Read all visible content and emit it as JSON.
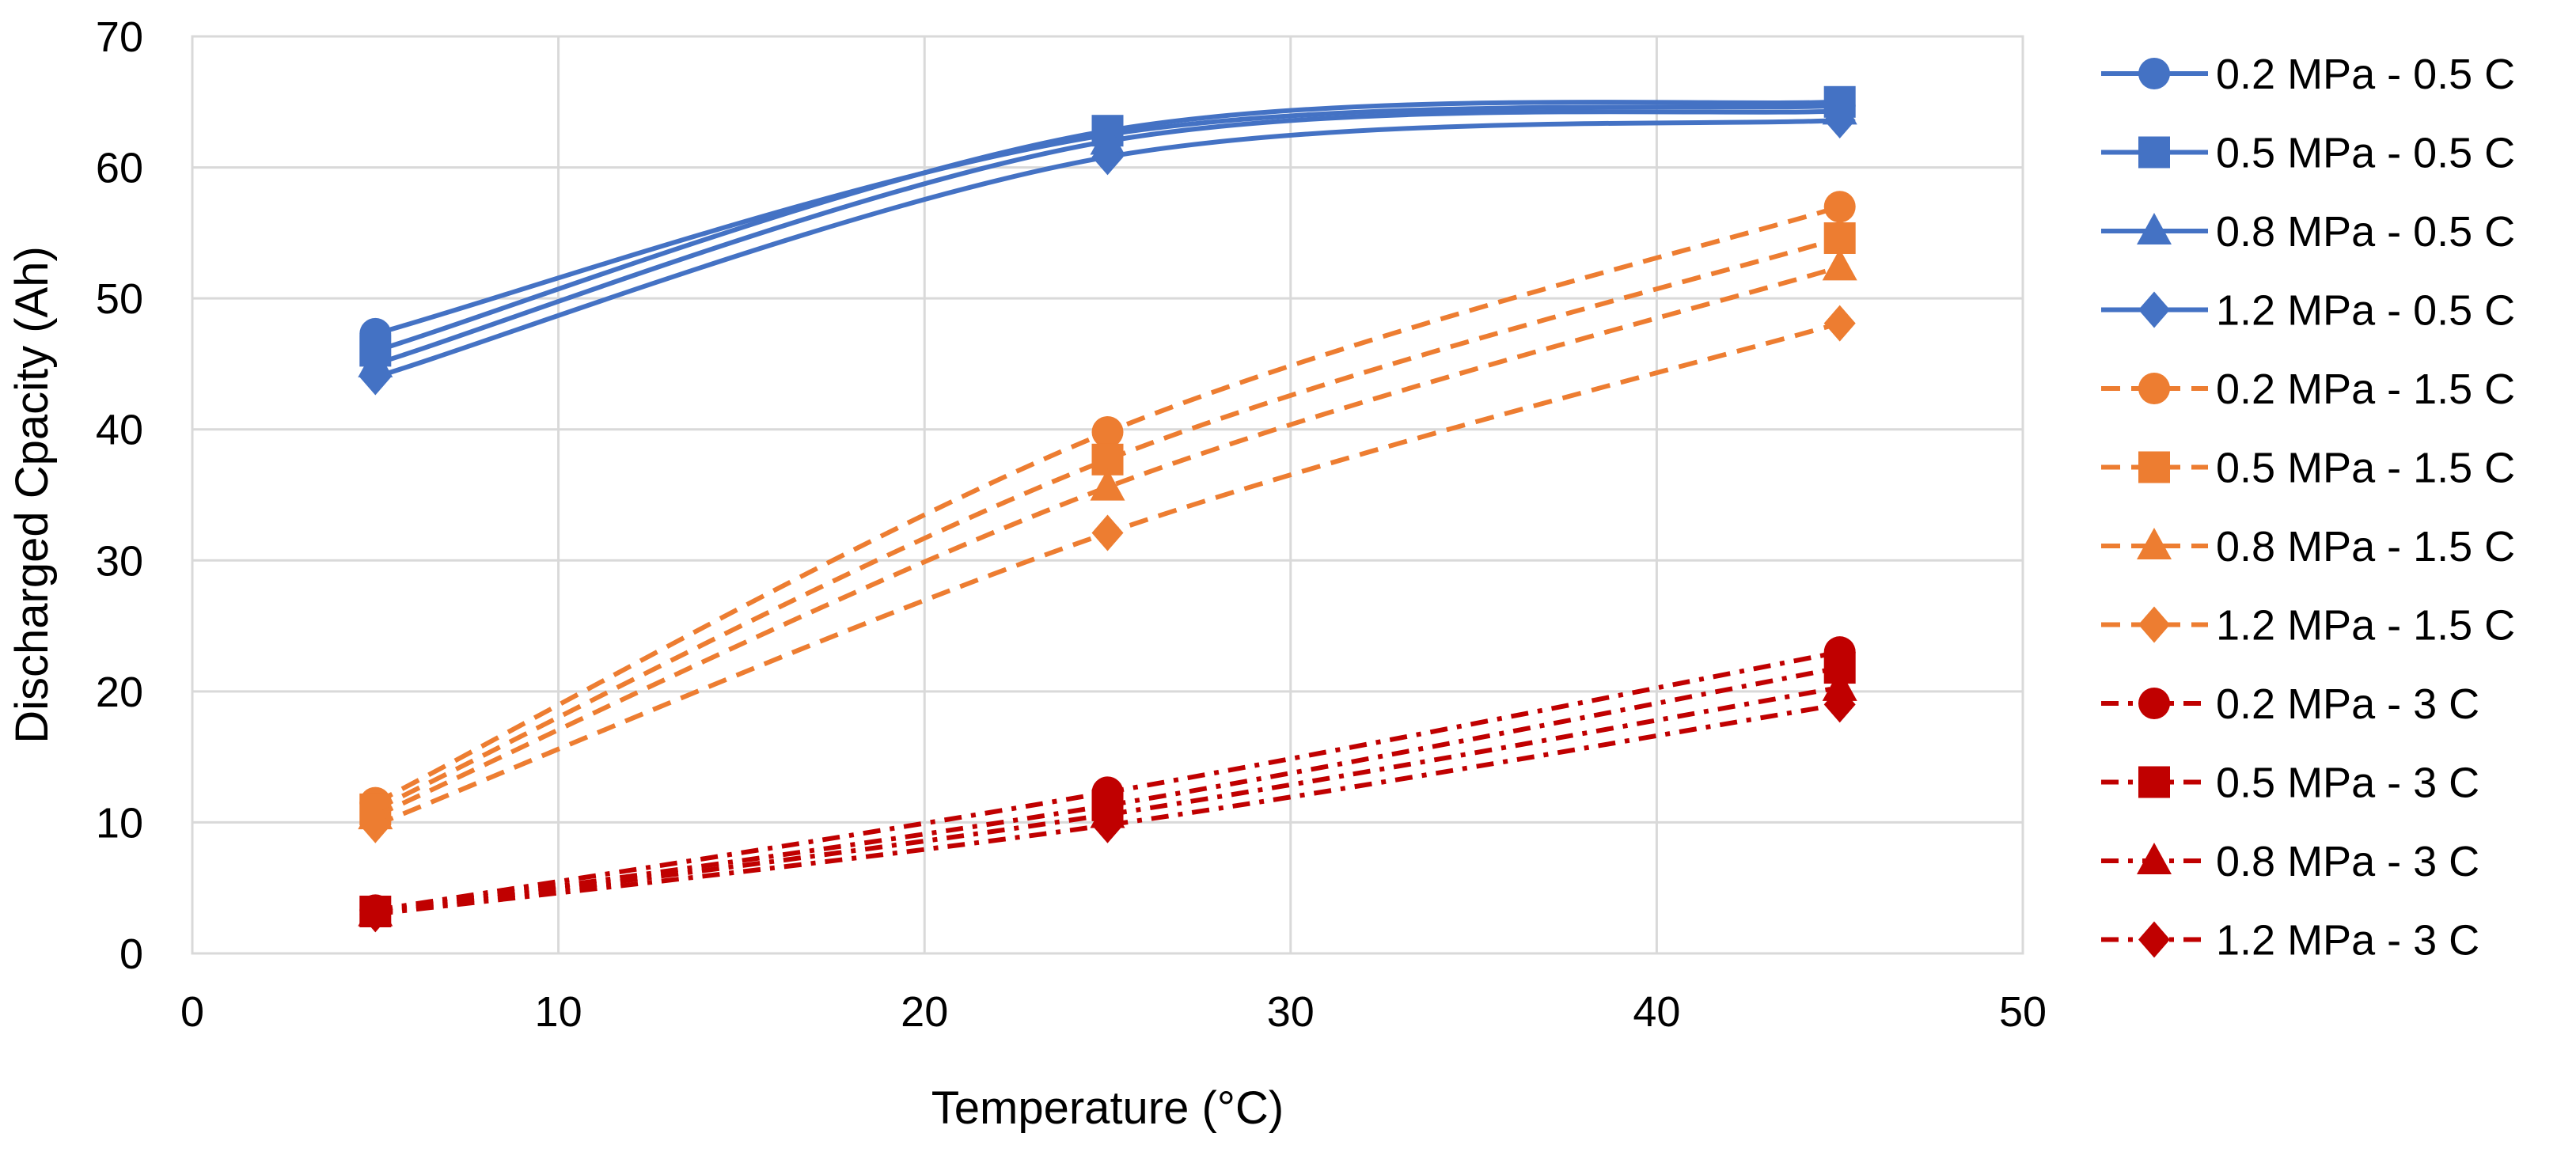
{
  "chart_data": {
    "type": "line",
    "title": "",
    "xlabel": "Temperature (°C)",
    "ylabel": "Discharged Cpacity (Ah)",
    "xlim": [
      0,
      50
    ],
    "ylim": [
      0,
      70
    ],
    "xticks": [
      0,
      10,
      20,
      30,
      40,
      50
    ],
    "yticks": [
      0,
      10,
      20,
      30,
      40,
      50,
      60,
      70
    ],
    "grid": true,
    "legend_position": "right",
    "x": [
      5,
      25,
      45
    ],
    "series": [
      {
        "name": "0.2 MPa - 0.5 C",
        "values": [
          47.3,
          62.5,
          64.7
        ],
        "color": "#4472C4",
        "dash": "solid",
        "marker": "circle"
      },
      {
        "name": "0.5 MPa - 0.5 C",
        "values": [
          46.0,
          62.8,
          65.0
        ],
        "color": "#4472C4",
        "dash": "solid",
        "marker": "square"
      },
      {
        "name": "0.8 MPa - 0.5 C",
        "values": [
          45.0,
          62.0,
          64.3
        ],
        "color": "#4472C4",
        "dash": "solid",
        "marker": "triangle"
      },
      {
        "name": "1.2 MPa - 0.5 C",
        "values": [
          44.0,
          60.8,
          63.6
        ],
        "color": "#4472C4",
        "dash": "solid",
        "marker": "diamond"
      },
      {
        "name": "0.2 MPa - 1.5 C",
        "values": [
          11.5,
          39.8,
          57.0
        ],
        "color": "#ED7D31",
        "dash": "dash",
        "marker": "circle"
      },
      {
        "name": "0.5 MPa - 1.5 C",
        "values": [
          11.0,
          37.7,
          54.6
        ],
        "color": "#ED7D31",
        "dash": "dash",
        "marker": "square"
      },
      {
        "name": "0.8 MPa - 1.5 C",
        "values": [
          10.5,
          35.6,
          52.4
        ],
        "color": "#ED7D31",
        "dash": "dash",
        "marker": "triangle"
      },
      {
        "name": "1.2 MPa - 1.5 C",
        "values": [
          9.8,
          32.1,
          48.1
        ],
        "color": "#ED7D31",
        "dash": "dash",
        "marker": "diamond"
      },
      {
        "name": "0.2 MPa - 3 C",
        "values": [
          3.3,
          12.3,
          23.0
        ],
        "color": "#C00000",
        "dash": "dashdot",
        "marker": "circle"
      },
      {
        "name": "0.5 MPa - 3 C",
        "values": [
          3.2,
          11.3,
          21.8
        ],
        "color": "#C00000",
        "dash": "dashdot",
        "marker": "square"
      },
      {
        "name": "0.8 MPa - 3 C",
        "values": [
          3.1,
          10.6,
          20.3
        ],
        "color": "#C00000",
        "dash": "dashdot",
        "marker": "triangle"
      },
      {
        "name": "1.2 MPa - 3 C",
        "values": [
          3.0,
          9.8,
          19.0
        ],
        "color": "#C00000",
        "dash": "dashdot",
        "marker": "diamond"
      }
    ]
  }
}
